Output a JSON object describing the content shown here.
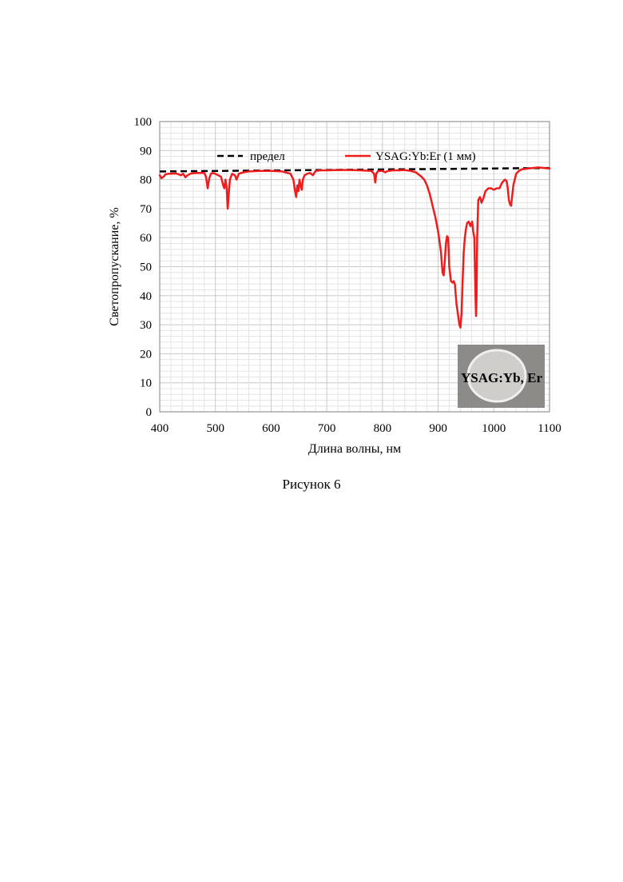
{
  "figure": {
    "caption": "Рисунок 6"
  },
  "inset": {
    "label": "YSAG:Yb, Er"
  },
  "chart_data": {
    "type": "line",
    "xlabel": "Длина волны, нм",
    "ylabel": "Светопропускание, %",
    "xlim": [
      400,
      1100
    ],
    "ylim": [
      0,
      100
    ],
    "x_ticks": [
      400,
      500,
      600,
      700,
      800,
      900,
      1000,
      1100
    ],
    "y_ticks": [
      0,
      10,
      20,
      30,
      40,
      50,
      60,
      70,
      80,
      90,
      100
    ],
    "grid": true,
    "legend_position": "top",
    "series": [
      {
        "name": "предел",
        "color": "#000000",
        "style": "dashed",
        "x": [
          400,
          1100
        ],
        "y": [
          82.8,
          84.0
        ]
      },
      {
        "name": "YSAG:Yb:Er (1 мм)",
        "color": "#ee1c1c",
        "style": "solid",
        "x": [
          400,
          403,
          407,
          410,
          415,
          420,
          430,
          438,
          442,
          446,
          450,
          455,
          460,
          470,
          480,
          483,
          486,
          489,
          492,
          495,
          500,
          505,
          510,
          514,
          516,
          518,
          520,
          522,
          524,
          526,
          530,
          535,
          538,
          542,
          550,
          560,
          580,
          600,
          620,
          635,
          640,
          643,
          645,
          647,
          649,
          651,
          653,
          655,
          657,
          660,
          665,
          670,
          675,
          680,
          690,
          700,
          720,
          740,
          760,
          780,
          785,
          787,
          789,
          792,
          800,
          805,
          810,
          820,
          830,
          840,
          850,
          860,
          870,
          875,
          880,
          885,
          890,
          895,
          900,
          905,
          908,
          910,
          912,
          914,
          916,
          918,
          920,
          923,
          926,
          928,
          930,
          933,
          936,
          938,
          940,
          942,
          944,
          946,
          948,
          950,
          952,
          955,
          958,
          961,
          963,
          965,
          966,
          967,
          968,
          969,
          970,
          972,
          975,
          978,
          982,
          985,
          990,
          995,
          1000,
          1005,
          1010,
          1015,
          1020,
          1023,
          1025,
          1027,
          1029,
          1031,
          1035,
          1040,
          1045,
          1050,
          1060,
          1070,
          1080,
          1090,
          1100
        ],
        "y": [
          81.5,
          80.5,
          81.0,
          81.8,
          82.0,
          82.0,
          82.1,
          81.5,
          82.0,
          80.8,
          81.5,
          82.0,
          82.2,
          82.3,
          82.3,
          81.0,
          77.0,
          80.5,
          82.0,
          82.3,
          82.0,
          81.5,
          81.0,
          78.0,
          77.0,
          80.0,
          77.5,
          70.0,
          75.0,
          80.0,
          82.0,
          81.5,
          80.0,
          82.0,
          82.5,
          82.8,
          83.0,
          83.0,
          82.8,
          82.0,
          80.0,
          76.0,
          74.0,
          78.0,
          76.0,
          80.0,
          78.0,
          76.5,
          80.0,
          81.5,
          82.0,
          82.3,
          81.5,
          83.0,
          83.2,
          83.2,
          83.3,
          83.3,
          83.2,
          83.0,
          82.0,
          79.0,
          82.0,
          83.0,
          83.0,
          82.5,
          83.0,
          83.2,
          83.2,
          83.3,
          83.0,
          82.5,
          81.0,
          80.0,
          78.0,
          75.0,
          71.0,
          67.0,
          62.0,
          55.0,
          48.0,
          47.0,
          52.0,
          58.0,
          60.5,
          60.0,
          50.0,
          45.0,
          44.5,
          45.0,
          44.0,
          37.0,
          33.0,
          30.0,
          29.0,
          34.0,
          45.0,
          55.0,
          60.0,
          63.0,
          65.0,
          65.5,
          64.0,
          65.5,
          62.0,
          60.0,
          50.0,
          40.0,
          33.0,
          40.0,
          60.0,
          73.0,
          74.0,
          72.0,
          74.0,
          76.0,
          77.0,
          77.0,
          76.5,
          77.0,
          77.0,
          79.0,
          80.0,
          79.5,
          77.0,
          73.0,
          71.5,
          71.0,
          78.0,
          82.0,
          83.0,
          83.5,
          83.8,
          84.0,
          84.2,
          84.0,
          83.8
        ]
      }
    ]
  }
}
